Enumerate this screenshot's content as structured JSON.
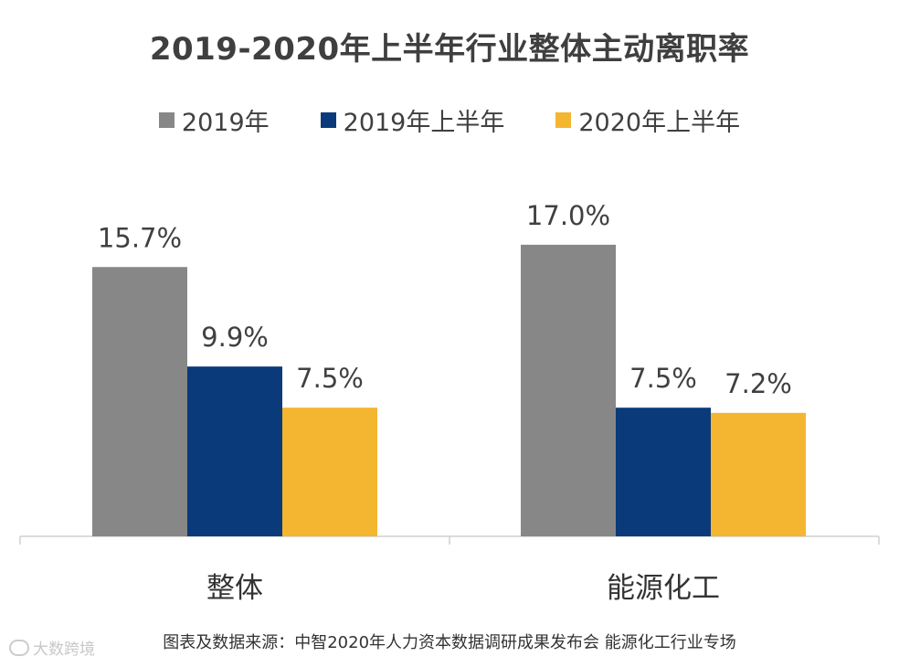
{
  "chart_data": {
    "type": "bar",
    "title": "2019-2020年上半年行业整体主动离职率",
    "categories": [
      "整体",
      "能源化工"
    ],
    "series": [
      {
        "name": "2019年",
        "color": "#878787",
        "values": [
          15.7,
          17.0
        ],
        "labels": [
          "15.7%",
          "17.0%"
        ]
      },
      {
        "name": "2019年上半年",
        "color": "#0a3a7a",
        "values": [
          9.9,
          7.5
        ],
        "labels": [
          "9.9%",
          "7.5%"
        ]
      },
      {
        "name": "2020年上半年",
        "color": "#f4b531",
        "values": [
          7.5,
          7.2
        ],
        "labels": [
          "7.5%",
          "7.2%"
        ]
      }
    ],
    "ylim": [
      0,
      20
    ],
    "xlabel": "",
    "ylabel": "",
    "grid": false,
    "legend_position": "top-center"
  },
  "source_text": "图表及数据来源：中智2020年人力资本数据调研成果发布会 能源化工行业专场",
  "watermark": {
    "text": "大数跨境",
    "icon": "logo-icon"
  }
}
